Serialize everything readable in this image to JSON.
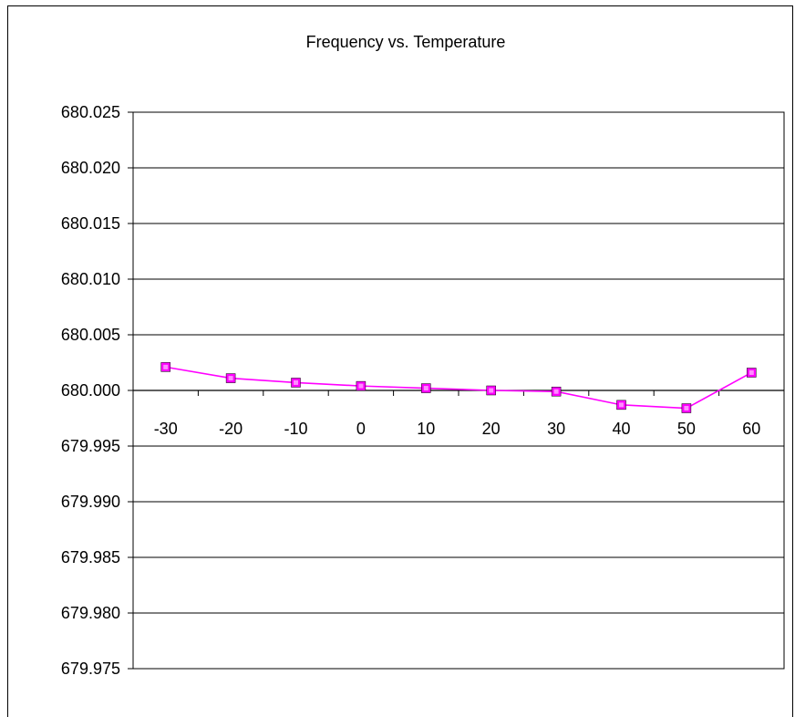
{
  "chart_data": {
    "type": "line",
    "title": "Frequency vs. Temperature",
    "xlabel": "",
    "ylabel": "",
    "categories": [
      "-30",
      "-20",
      "-10",
      "0",
      "10",
      "20",
      "30",
      "40",
      "50",
      "60"
    ],
    "series": [
      {
        "values": [
          680.0021,
          680.0011,
          680.0007,
          680.0004,
          680.0002,
          680.0,
          679.9999,
          679.9987,
          679.9984,
          680.0016
        ],
        "color": "#ff00ff",
        "marker": "square"
      }
    ],
    "ylim": [
      679.975,
      680.025
    ],
    "ytick_step": 0.005,
    "ytick_labels": [
      "680.025",
      "680.020",
      "680.015",
      "680.010",
      "680.005",
      "680.000",
      "679.995",
      "679.990",
      "679.985",
      "679.980",
      "679.975"
    ],
    "grid": "horizontal",
    "legend": "none"
  }
}
